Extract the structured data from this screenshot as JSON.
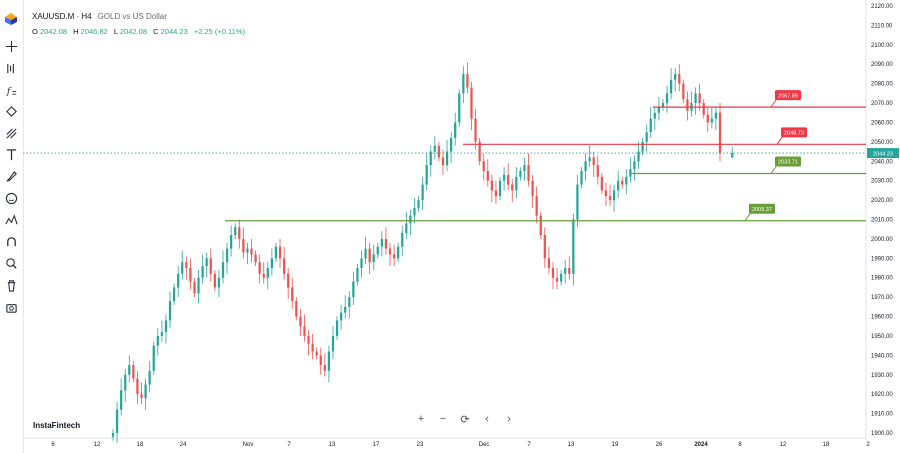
{
  "header": {
    "symbol": "XAUUSD.M · H4",
    "description": "GOLD vs US Dollar",
    "ohlc": {
      "o_label": "O",
      "o": "2042.08",
      "h_label": "H",
      "h": "2046.82",
      "l_label": "L",
      "l": "2042.08",
      "c_label": "C",
      "c": "2044.23",
      "change": "+2.25 (+0.11%)"
    }
  },
  "watermark": "InstaFintech",
  "toolbar_icons": [
    "crosshair-icon",
    "trend-line-icon",
    "fib-icon",
    "pattern-icon",
    "projection-icon",
    "text-icon",
    "brush-icon",
    "emoji-icon",
    "measure-icon",
    "magnet-icon",
    "lock-draw-icon",
    "trash-icon",
    "camera-icon"
  ],
  "nav_buttons": [
    {
      "name": "zoom-in-button",
      "glyph": "+"
    },
    {
      "name": "zoom-out-button",
      "glyph": "−"
    },
    {
      "name": "reset-chart-button",
      "glyph": "⟳"
    },
    {
      "name": "scroll-left-button",
      "glyph": "‹"
    },
    {
      "name": "scroll-right-button",
      "glyph": "›"
    }
  ],
  "colors": {
    "up": "#26a69a",
    "down": "#ef5350",
    "resistance": "#f23645",
    "support": "#689f38",
    "price": "#26a69a",
    "grid": "#f0f3fa"
  },
  "chart_data": {
    "type": "candlestick",
    "y_axis": {
      "min": 1900,
      "max": 2120,
      "step": 10,
      "ticks": [
        "2120.00",
        "2110.00",
        "2100.00",
        "2090.00",
        "2080.00",
        "2070.00",
        "2060.00",
        "2050.00",
        "2040.00",
        "2030.00",
        "2020.00",
        "2010.00",
        "2000.00",
        "1990.00",
        "1980.00",
        "1970.00",
        "1960.00",
        "1950.00",
        "1940.00",
        "1930.00",
        "1920.00",
        "1910.00",
        "1900.00"
      ]
    },
    "x_axis": {
      "ticks": [
        {
          "label": "6",
          "bold": false
        },
        {
          "label": "12",
          "bold": false
        },
        {
          "label": "18",
          "bold": false
        },
        {
          "label": "24",
          "bold": false
        },
        {
          "label": "Nov",
          "bold": false
        },
        {
          "label": "7",
          "bold": false
        },
        {
          "label": "13",
          "bold": false
        },
        {
          "label": "17",
          "bold": false
        },
        {
          "label": "23",
          "bold": false
        },
        {
          "label": "Dec",
          "bold": false
        },
        {
          "label": "7",
          "bold": false
        },
        {
          "label": "13",
          "bold": false
        },
        {
          "label": "19",
          "bold": false
        },
        {
          "label": "26",
          "bold": false
        },
        {
          "label": "2024",
          "bold": true
        },
        {
          "label": "8",
          "bold": false
        },
        {
          "label": "12",
          "bold": false
        },
        {
          "label": "18",
          "bold": false
        },
        {
          "label": "2",
          "bold": false
        }
      ]
    },
    "current_price": {
      "value": 2044.23,
      "label": "2044.23"
    },
    "levels": [
      {
        "name": "resistance-2067",
        "value": 2067.89,
        "label": "2067.89",
        "kind": "resistance"
      },
      {
        "name": "resistance-2048",
        "value": 2048.73,
        "label": "2048.73",
        "kind": "resistance"
      },
      {
        "name": "support-2033",
        "value": 2033.71,
        "label": "2033.71",
        "kind": "support"
      },
      {
        "name": "support-2009",
        "value": 2009.37,
        "label": "2009.37",
        "kind": "support"
      }
    ],
    "price_path": [
      1900,
      1912,
      1922,
      1930,
      1935,
      1928,
      1920,
      1918,
      1925,
      1932,
      1945,
      1950,
      1952,
      1958,
      1968,
      1975,
      1982,
      1988,
      1985,
      1978,
      1972,
      1980,
      1986,
      1990,
      1982,
      1975,
      1980,
      1988,
      1995,
      2002,
      2006,
      2000,
      1993,
      1995,
      1992,
      1988,
      1982,
      1980,
      1985,
      1990,
      1996,
      1990,
      1982,
      1975,
      1968,
      1960,
      1955,
      1950,
      1946,
      1942,
      1940,
      1935,
      1932,
      1942,
      1950,
      1958,
      1962,
      1965,
      1970,
      1978,
      1985,
      1990,
      1995,
      1988,
      1992,
      1996,
      2000,
      1995,
      1992,
      1990,
      1996,
      2003,
      2008,
      2012,
      2016,
      2020,
      2028,
      2038,
      2045,
      2048,
      2042,
      2038,
      2045,
      2052,
      2060,
      2075,
      2085,
      2078,
      2062,
      2050,
      2040,
      2035,
      2030,
      2025,
      2022,
      2030,
      2033,
      2028,
      2025,
      2032,
      2035,
      2038,
      2030,
      2022,
      2012,
      2002,
      1990,
      1985,
      1980,
      1978,
      1982,
      1985,
      1982,
      2010,
      2028,
      2035,
      2040,
      2042,
      2038,
      2032,
      2025,
      2022,
      2020,
      2025,
      2030,
      2028,
      2032,
      2036,
      2040,
      2045,
      2050,
      2055,
      2062,
      2065,
      2068,
      2070,
      2075,
      2082,
      2085,
      2080,
      2072,
      2066,
      2070,
      2075,
      2070,
      2064,
      2060,
      2062,
      2065,
      2044
    ]
  }
}
